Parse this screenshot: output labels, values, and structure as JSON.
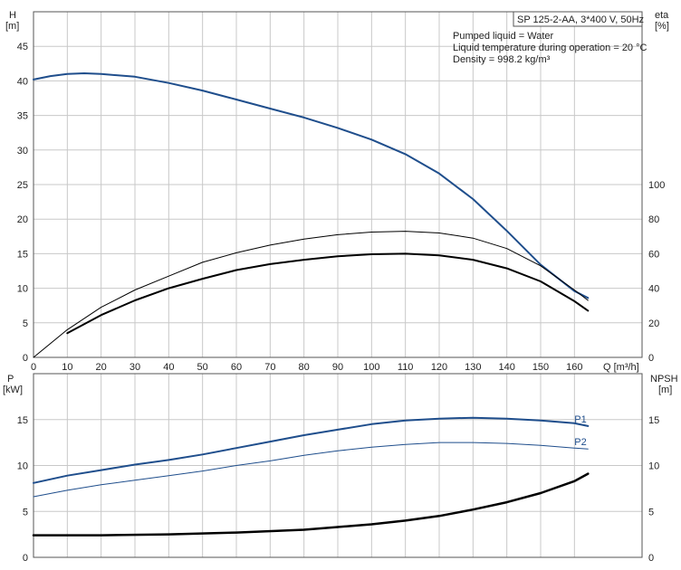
{
  "chart_data": [
    {
      "type": "line",
      "panel": "top",
      "xlabel": "Q [m³/h]",
      "ylabel": "H\n[m]",
      "y2label": "eta\n[%]",
      "xlim": [
        0,
        180
      ],
      "ylim": [
        0,
        50
      ],
      "y2lim": [
        0,
        200
      ],
      "xticks": [
        0,
        10,
        20,
        30,
        40,
        50,
        60,
        70,
        80,
        90,
        100,
        110,
        120,
        130,
        140,
        150,
        160
      ],
      "yticks": [
        0,
        5,
        10,
        15,
        20,
        25,
        30,
        35,
        40,
        45
      ],
      "y2ticks": [
        0,
        20,
        40,
        60,
        80,
        100
      ],
      "grid": true,
      "pump_label": "SP 125-2-AA, 3*400 V, 50Hz",
      "notes": [
        "Pumped liquid = Water",
        "Liquid temperature during operation = 20 °C",
        "Density = 998.2 kg/m³"
      ],
      "series": [
        {
          "axis": "left",
          "color": "#1f4e8c",
          "width": 2,
          "x": [
            0,
            5,
            10,
            15,
            20,
            30,
            40,
            50,
            60,
            70,
            80,
            90,
            100,
            110,
            120,
            130,
            140,
            150,
            160,
            164
          ],
          "y": [
            40.2,
            40.7,
            41.0,
            41.1,
            41.0,
            40.6,
            39.7,
            38.6,
            37.3,
            36.0,
            34.7,
            33.2,
            31.5,
            29.4,
            26.6,
            22.9,
            18.3,
            13.4,
            9.6,
            8.6
          ]
        },
        {
          "axis": "right",
          "color": "#000000",
          "width": 1,
          "x": [
            0,
            10,
            20,
            30,
            40,
            50,
            60,
            70,
            80,
            90,
            100,
            110,
            120,
            130,
            140,
            150,
            160,
            164
          ],
          "y": [
            0,
            16,
            29,
            39,
            47,
            55,
            60.5,
            65,
            68.5,
            71,
            72.5,
            73,
            72,
            69,
            63,
            53,
            39,
            33
          ]
        },
        {
          "axis": "right",
          "color": "#000000",
          "width": 2,
          "x": [
            10,
            20,
            30,
            40,
            50,
            60,
            70,
            80,
            90,
            100,
            110,
            120,
            130,
            140,
            150,
            160,
            164
          ],
          "y": [
            14,
            24.5,
            33,
            40,
            45.5,
            50.5,
            54,
            56.5,
            58.5,
            59.7,
            60,
            59,
            56.5,
            51.5,
            44,
            32.5,
            27
          ]
        }
      ]
    },
    {
      "type": "line",
      "panel": "bottom",
      "ylabel": "P\n[kW]",
      "y2label": "NPSH\n[m]",
      "xlim": [
        0,
        180
      ],
      "ylim": [
        0,
        20
      ],
      "y2lim": [
        0,
        20
      ],
      "yticks": [
        0,
        5,
        10,
        15
      ],
      "y2ticks": [
        0,
        5,
        10,
        15
      ],
      "grid": true,
      "series": [
        {
          "name": "P1",
          "axis": "left",
          "color": "#1f4e8c",
          "width": 2,
          "x": [
            0,
            10,
            20,
            30,
            40,
            50,
            60,
            70,
            80,
            90,
            100,
            110,
            120,
            130,
            140,
            150,
            160,
            164
          ],
          "y": [
            8.1,
            8.9,
            9.5,
            10.1,
            10.6,
            11.2,
            11.9,
            12.6,
            13.3,
            13.9,
            14.5,
            14.9,
            15.1,
            15.2,
            15.1,
            14.9,
            14.6,
            14.3
          ]
        },
        {
          "name": "P2",
          "axis": "left",
          "color": "#1f4e8c",
          "width": 1,
          "x": [
            0,
            10,
            20,
            30,
            40,
            50,
            60,
            70,
            80,
            90,
            100,
            110,
            120,
            130,
            140,
            150,
            160,
            164
          ],
          "y": [
            6.6,
            7.3,
            7.9,
            8.4,
            8.9,
            9.4,
            10.0,
            10.5,
            11.1,
            11.6,
            12.0,
            12.3,
            12.5,
            12.5,
            12.4,
            12.2,
            11.9,
            11.8
          ]
        },
        {
          "axis": "right",
          "color": "#000000",
          "width": 2.5,
          "x": [
            0,
            10,
            20,
            40,
            60,
            80,
            90,
            100,
            110,
            120,
            130,
            140,
            150,
            160,
            164
          ],
          "y": [
            2.4,
            2.4,
            2.4,
            2.5,
            2.7,
            3.0,
            3.3,
            3.6,
            4.0,
            4.5,
            5.2,
            6.0,
            7.0,
            8.3,
            9.1
          ]
        }
      ]
    }
  ]
}
